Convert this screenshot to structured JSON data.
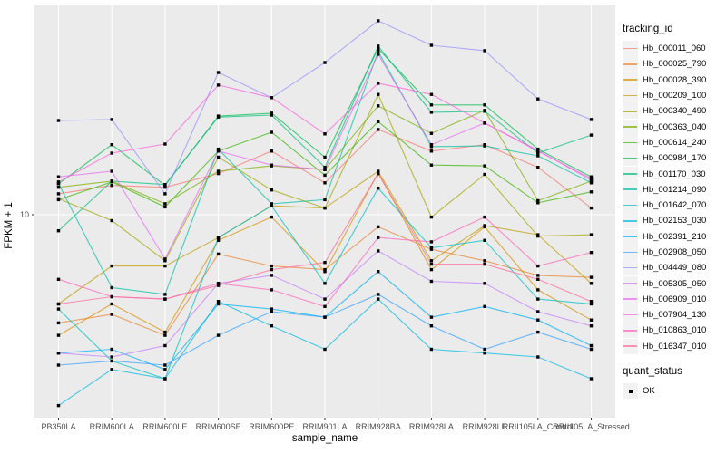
{
  "figure": {
    "x_axis_title": "sample_name",
    "y_axis_title": "FPKM + 1"
  },
  "legend": {
    "tracking_title": "tracking_id",
    "quant_title": "quant_status",
    "quant_ok_label": "OK"
  },
  "chart_data": {
    "type": "line",
    "title": "",
    "xlabel": "sample_name",
    "ylabel": "FPKM + 1",
    "y_scale": "log10",
    "ylim": [
      1.7,
      64
    ],
    "y_ticks": [
      10
    ],
    "y_tick_labels": [
      "10"
    ],
    "grid": "white-on-gray-panel",
    "legend_position": "right",
    "point_shape": "filled-black-square (quant_status OK)",
    "categories": [
      "PB350LA",
      "RRIM600LA",
      "RRIM600LE",
      "RRIM600SE",
      "RRIM600PE",
      "RRIM901LA",
      "RRIM928BA",
      "RRIM928LA",
      "RRIM928LE",
      "RRII105LA_Control",
      "RRII105LA_Stressed"
    ],
    "series": [
      {
        "name": "Hb_000011_060",
        "color": "#F8766D",
        "values": [
          12.0,
          12.9,
          12.7,
          14.3,
          17.4,
          13.2,
          21.0,
          17.4,
          18.4,
          15.1,
          10.6
        ]
      },
      {
        "name": "Hb_000025_790",
        "color": "#EA8331",
        "values": [
          3.9,
          4.2,
          3.5,
          7.1,
          6.4,
          6.2,
          9.0,
          7.4,
          6.7,
          5.9,
          5.8
        ]
      },
      {
        "name": "Hb_000028_390",
        "color": "#D89000",
        "values": [
          3.5,
          4.6,
          3.6,
          8.0,
          9.8,
          6.1,
          14.4,
          6.2,
          9.0,
          5.2,
          4.0
        ]
      },
      {
        "name": "Hb_000209_100",
        "color": "#C09B00",
        "values": [
          4.6,
          6.4,
          6.4,
          8.2,
          10.8,
          10.6,
          14.6,
          6.7,
          9.1,
          8.4,
          5.5
        ]
      },
      {
        "name": "Hb_000340_490",
        "color": "#A3A500",
        "values": [
          11.5,
          9.5,
          6.7,
          16.5,
          12.4,
          10.6,
          28.5,
          9.8,
          14.2,
          8.3,
          8.4
        ]
      },
      {
        "name": "Hb_000363_040",
        "color": "#7CAE00",
        "values": [
          12.7,
          13.4,
          11.0,
          14.6,
          15.3,
          14.8,
          25.8,
          20.3,
          24.8,
          11.3,
          13.4
        ]
      },
      {
        "name": "Hb_000614_240",
        "color": "#39B600",
        "values": [
          11.4,
          13.3,
          10.7,
          17.4,
          20.5,
          14.1,
          22.5,
          15.4,
          15.3,
          11.1,
          12.2
        ]
      },
      {
        "name": "Hb_000984_170",
        "color": "#00BB4E",
        "values": [
          13.1,
          18.4,
          12.9,
          23.6,
          24.2,
          16.5,
          42.4,
          26.0,
          26.0,
          17.7,
          13.9
        ]
      },
      {
        "name": "Hb_001170_030",
        "color": "#00BF7D",
        "values": [
          8.7,
          13.4,
          13.0,
          23.4,
          23.8,
          15.1,
          43.4,
          24.4,
          24.6,
          17.1,
          20.0
        ]
      },
      {
        "name": "Hb_001214_090",
        "color": "#00C1A3",
        "values": [
          13.1,
          5.3,
          5.0,
          17.7,
          11.0,
          11.4,
          41.4,
          18.1,
          18.2,
          16.7,
          13.2
        ]
      },
      {
        "name": "Hb_001642_070",
        "color": "#00BFC4",
        "values": [
          4.4,
          2.8,
          2.4,
          8.2,
          10.8,
          5.5,
          12.6,
          7.5,
          8.0,
          4.8,
          4.6
        ]
      },
      {
        "name": "Hb_002153_030",
        "color": "#00BAE0",
        "values": [
          1.9,
          2.6,
          2.4,
          4.7,
          3.8,
          3.1,
          4.8,
          3.1,
          3.0,
          2.9,
          2.4
        ]
      },
      {
        "name": "Hb_002391_210",
        "color": "#00B0F6",
        "values": [
          3.0,
          3.1,
          2.6,
          4.6,
          4.4,
          4.1,
          6.1,
          4.1,
          4.5,
          4.0,
          3.2
        ]
      },
      {
        "name": "Hb_002908_050",
        "color": "#35A2FF",
        "values": [
          2.7,
          2.8,
          2.7,
          3.5,
          4.3,
          4.1,
          5.0,
          3.8,
          3.1,
          3.6,
          3.1
        ]
      },
      {
        "name": "Hb_004449_080",
        "color": "#9590FF",
        "values": [
          22.7,
          22.9,
          12.0,
          34.5,
          27.7,
          37.6,
          54.1,
          43.7,
          41.7,
          27.4,
          22.9
        ]
      },
      {
        "name": "Hb_005305_050",
        "color": "#C77CFF",
        "values": [
          3.0,
          2.9,
          3.2,
          5.5,
          5.9,
          4.8,
          7.3,
          5.6,
          5.5,
          4.3,
          3.8
        ]
      },
      {
        "name": "Hb_006909_010",
        "color": "#E76BF3",
        "values": [
          13.9,
          14.6,
          6.8,
          17.4,
          15.4,
          14.8,
          40.4,
          18.4,
          22.2,
          17.5,
          13.5
        ]
      },
      {
        "name": "Hb_007904_130",
        "color": "#FA62DB",
        "values": [
          13.3,
          17.1,
          18.5,
          30.9,
          27.7,
          20.2,
          31.4,
          28.5,
          22.2,
          17.4,
          13.7
        ]
      },
      {
        "name": "Hb_010863_010",
        "color": "#FF62BC",
        "values": [
          5.7,
          4.9,
          4.8,
          5.5,
          5.2,
          4.5,
          8.2,
          7.9,
          9.8,
          6.4,
          7.2
        ]
      },
      {
        "name": "Hb_016347_010",
        "color": "#FF6A98",
        "values": [
          4.6,
          4.9,
          4.8,
          5.4,
          6.2,
          6.6,
          14.3,
          6.5,
          6.5,
          5.7,
          4.7
        ]
      }
    ]
  }
}
